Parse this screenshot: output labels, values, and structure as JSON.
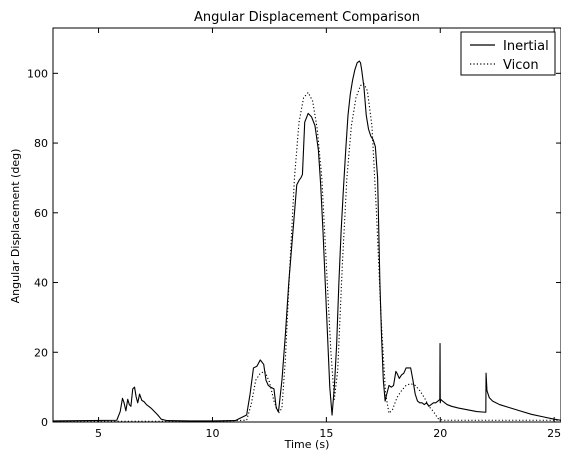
{
  "chart_data": {
    "type": "line",
    "title": "Angular Displacement Comparison",
    "xlabel": "Time (s)",
    "ylabel": "Angular Displacement (deg)",
    "xlim": [
      3,
      25.3
    ],
    "ylim": [
      0,
      113
    ],
    "xticks": [
      5,
      10,
      15,
      20,
      25
    ],
    "yticks": [
      0,
      20,
      40,
      60,
      80,
      100
    ],
    "grid": false,
    "legend_position": "top-right",
    "series": [
      {
        "name": "Inertial",
        "style": "solid",
        "color": "#000000",
        "x": [
          3.0,
          5.8,
          5.95,
          6.05,
          6.12,
          6.2,
          6.28,
          6.35,
          6.42,
          6.5,
          6.58,
          6.65,
          6.72,
          6.8,
          6.9,
          7.0,
          7.1,
          7.2,
          7.3,
          7.45,
          7.6,
          7.75,
          8.0,
          9.0,
          10.0,
          11.0,
          11.5,
          11.65,
          11.8,
          11.95,
          12.1,
          12.25,
          12.35,
          12.45,
          12.55,
          12.7,
          12.8,
          12.9,
          13.05,
          13.2,
          13.35,
          13.5,
          13.6,
          13.7,
          13.82,
          13.88,
          13.95,
          14.05,
          14.2,
          14.35,
          14.5,
          14.65,
          14.75,
          14.85,
          14.95,
          15.05,
          15.15,
          15.25,
          15.35,
          15.45,
          15.55,
          15.65,
          15.75,
          15.85,
          15.95,
          16.05,
          16.15,
          16.25,
          16.35,
          16.45,
          16.5,
          16.55,
          16.65,
          16.75,
          16.85,
          16.95,
          17.05,
          17.15,
          17.25,
          17.3,
          17.35,
          17.42,
          17.5,
          17.58,
          17.65,
          17.75,
          17.85,
          17.95,
          18.05,
          18.1,
          18.2,
          18.3,
          18.4,
          18.5,
          18.6,
          18.7,
          18.8,
          18.9,
          19.0,
          19.1,
          19.2,
          19.3,
          19.4,
          19.5,
          19.6,
          19.7,
          19.8,
          19.9,
          19.98,
          19.99,
          20.0,
          20.02,
          20.1,
          20.3,
          20.5,
          20.8,
          21.2,
          21.6,
          22.0,
          22.01,
          22.05,
          22.15,
          22.3,
          22.6,
          23.0,
          23.5,
          24.0,
          24.5,
          25.0,
          25.3
        ],
        "y": [
          0.3,
          0.5,
          3.0,
          6.8,
          5.5,
          3.2,
          6.5,
          5.0,
          4.5,
          9.5,
          10.0,
          7.2,
          5.5,
          8.0,
          6.2,
          5.8,
          5.0,
          4.5,
          4.0,
          3.0,
          2.0,
          0.8,
          0.4,
          0.3,
          0.3,
          0.4,
          2.0,
          8.0,
          15.5,
          16.0,
          17.8,
          16.5,
          12.0,
          10.5,
          10.0,
          9.5,
          4.0,
          3.0,
          12.0,
          25.0,
          40.0,
          52.0,
          60.0,
          68.0,
          69.5,
          70.0,
          71.0,
          86.0,
          88.5,
          87.5,
          85.0,
          78.0,
          68.0,
          55.0,
          40.0,
          25.0,
          10.0,
          2.0,
          10.0,
          22.0,
          40.0,
          55.0,
          67.0,
          78.0,
          88.0,
          94.0,
          98.0,
          101.0,
          103.0,
          103.5,
          103.0,
          101.0,
          96.0,
          88.0,
          84.0,
          82.0,
          81.0,
          79.0,
          70.0,
          55.0,
          40.0,
          25.0,
          12.0,
          6.0,
          8.0,
          10.5,
          10.0,
          10.5,
          14.5,
          14.0,
          12.5,
          13.5,
          14.0,
          15.5,
          15.5,
          15.5,
          12.0,
          8.0,
          6.0,
          5.5,
          5.5,
          5.0,
          5.5,
          4.5,
          5.0,
          5.5,
          5.5,
          6.0,
          6.5,
          22.5,
          5.5,
          6.5,
          6.0,
          5.0,
          4.5,
          4.0,
          3.5,
          3.0,
          2.8,
          14.0,
          9.0,
          7.0,
          6.0,
          5.0,
          4.2,
          3.2,
          2.2,
          1.5,
          0.8,
          0.5
        ]
      },
      {
        "name": "Vicon",
        "style": "dotted",
        "color": "#000000",
        "x": [
          3.0,
          10.0,
          11.5,
          11.7,
          11.9,
          12.1,
          12.3,
          12.5,
          12.7,
          12.9,
          13.05,
          13.2,
          13.4,
          13.6,
          13.8,
          14.0,
          14.2,
          14.4,
          14.6,
          14.8,
          15.0,
          15.2,
          15.35,
          15.5,
          15.7,
          15.9,
          16.1,
          16.3,
          16.5,
          16.65,
          16.8,
          17.0,
          17.2,
          17.4,
          17.6,
          17.75,
          17.9,
          18.1,
          18.3,
          18.5,
          18.7,
          18.9,
          19.1,
          19.3,
          19.5,
          19.7,
          19.9,
          20.1,
          20.3,
          21.0,
          23.0,
          25.0,
          25.3
        ],
        "y": [
          0.2,
          0.2,
          0.5,
          5.0,
          12.0,
          14.0,
          14.5,
          11.5,
          6.0,
          2.5,
          4.0,
          18.0,
          45.0,
          70.0,
          86.0,
          93.0,
          94.5,
          92.0,
          84.0,
          70.0,
          45.0,
          20.0,
          6.5,
          15.0,
          45.0,
          70.0,
          85.0,
          93.0,
          96.5,
          97.0,
          95.0,
          85.0,
          60.0,
          30.0,
          8.0,
          2.5,
          3.5,
          7.0,
          9.0,
          10.5,
          11.0,
          10.5,
          9.0,
          7.0,
          4.5,
          3.0,
          1.0,
          0.5,
          0.5,
          0.5,
          0.5,
          0.5,
          0.5
        ]
      }
    ]
  }
}
